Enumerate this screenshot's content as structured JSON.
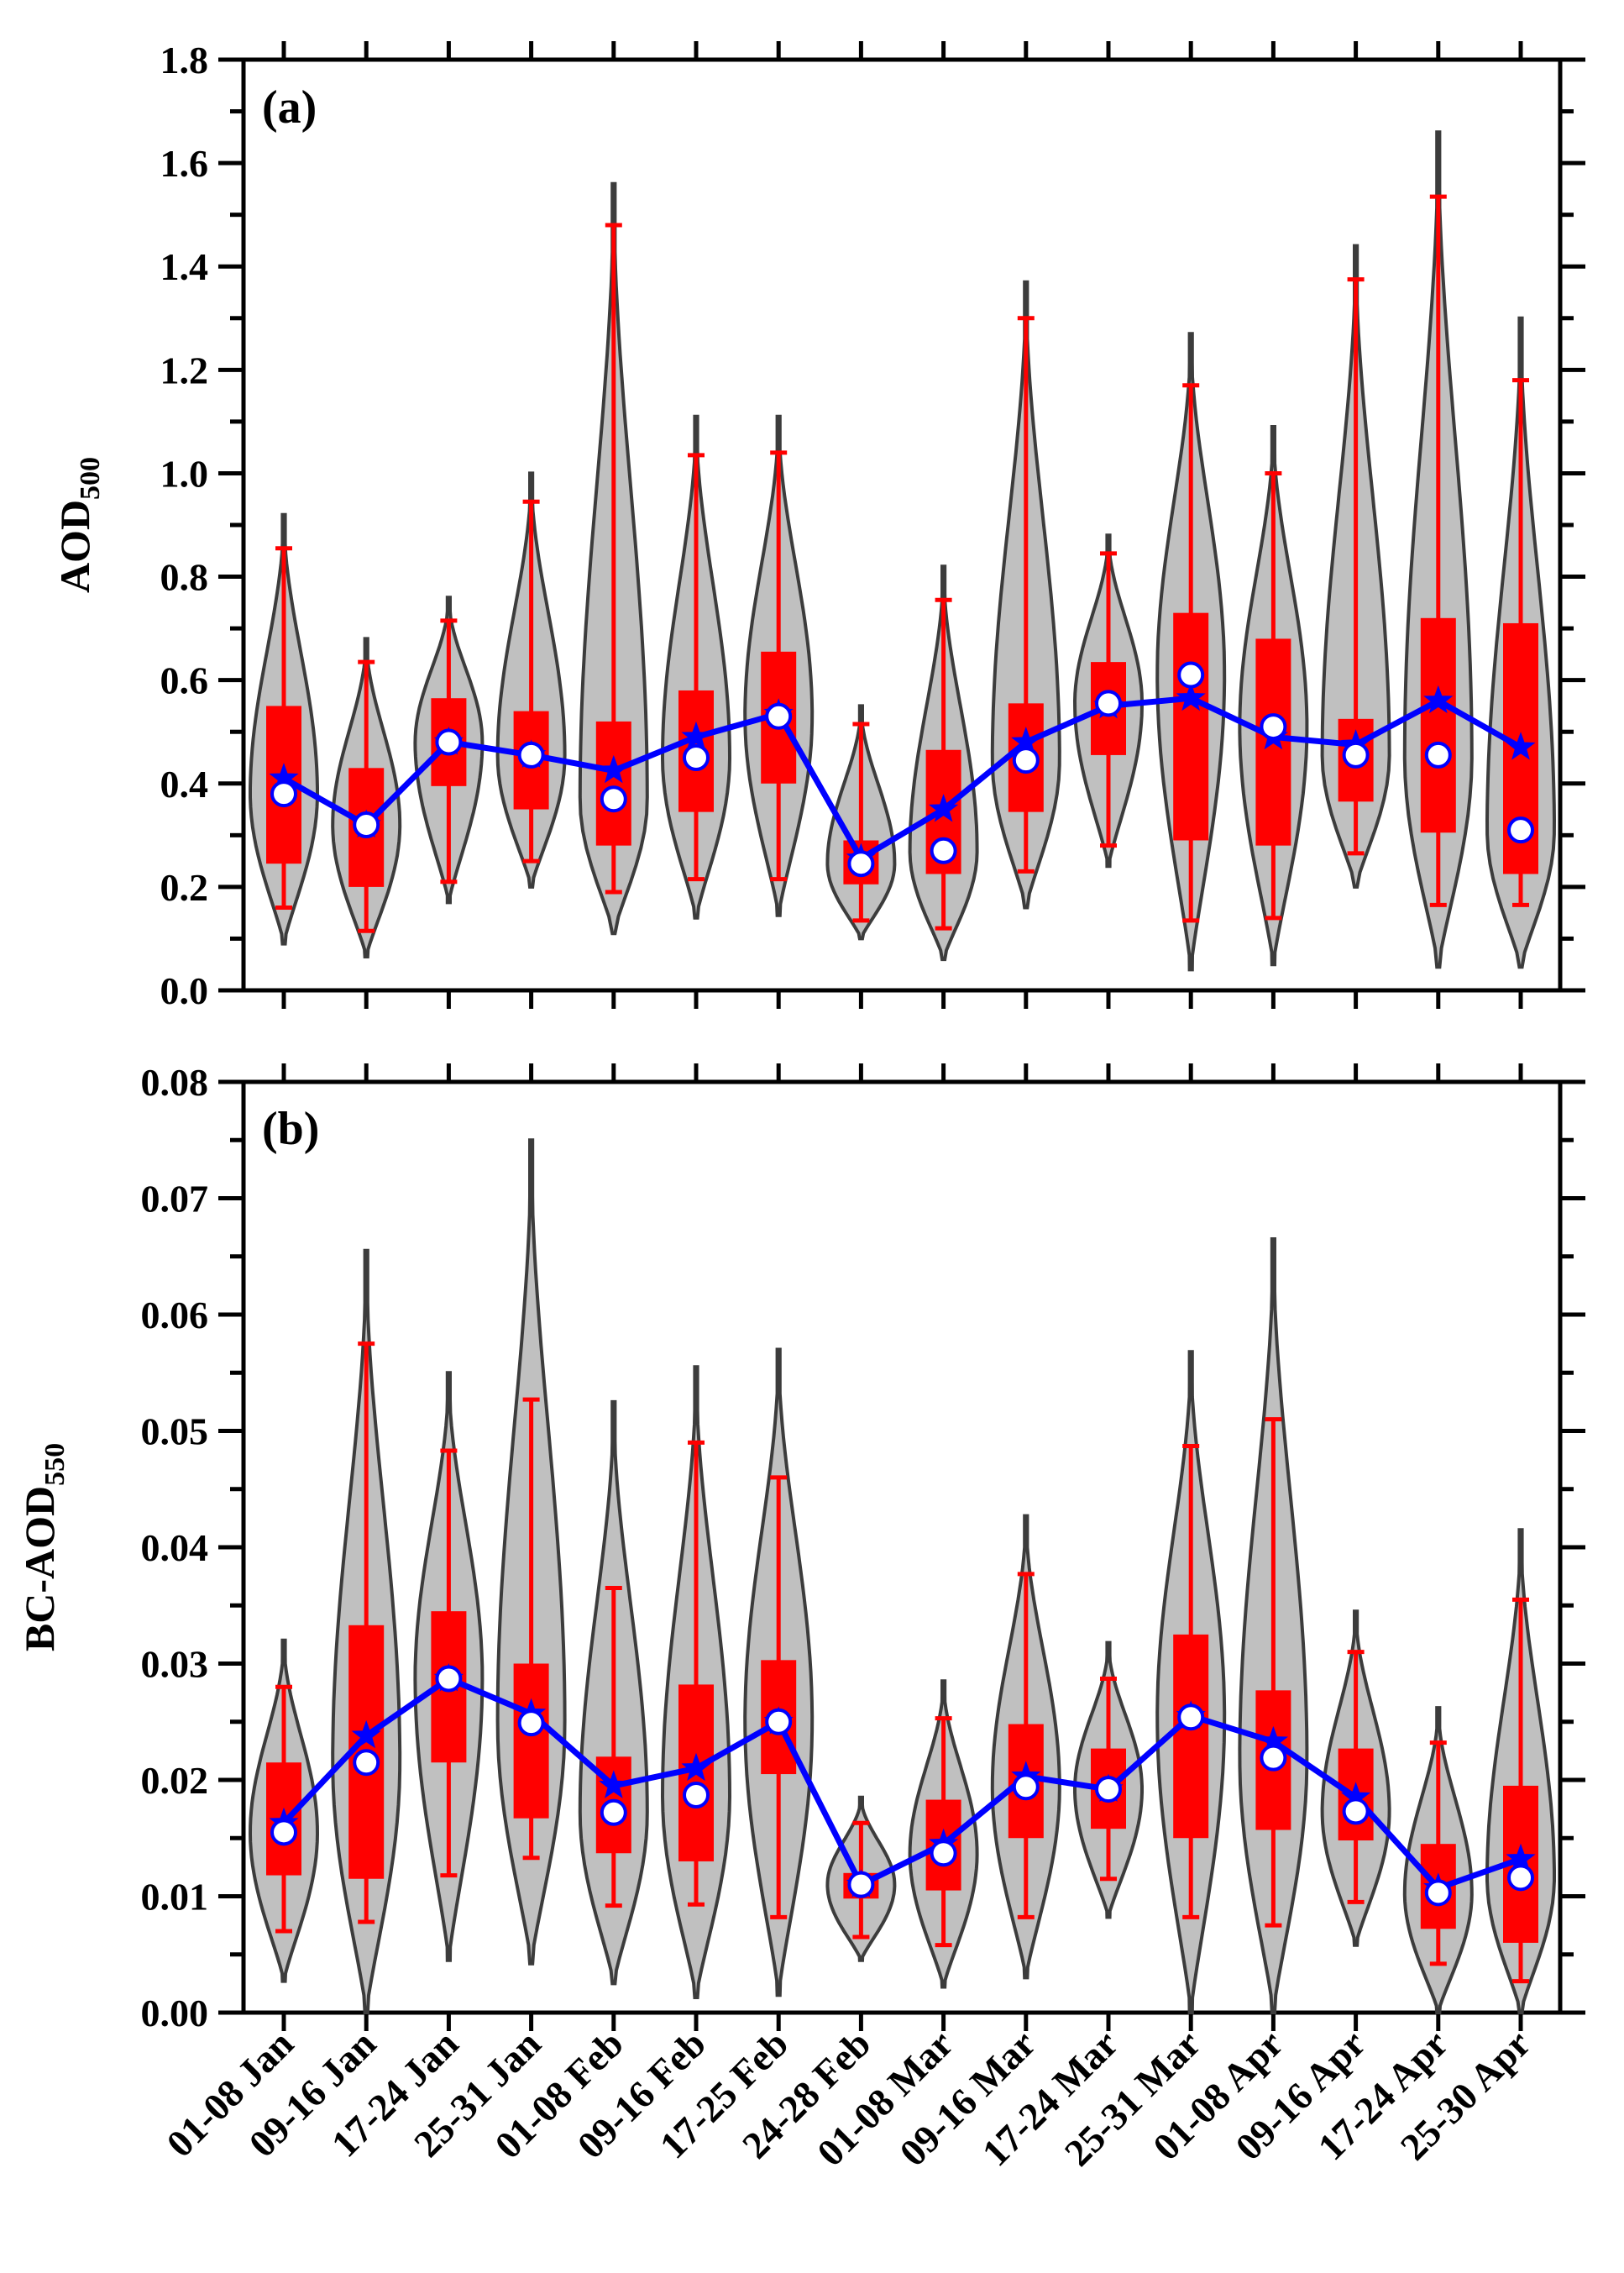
{
  "chart_data": {
    "type": "violin",
    "categories": [
      "01-08 Jan",
      "09-16 Jan",
      "17-24 Jan",
      "25-31 Jan",
      "01-08 Feb",
      "09-16 Feb",
      "17-25 Feb",
      "24-28 Feb",
      "01-08 Mar",
      "09-16 Mar",
      "17-24 Mar",
      "25-31 Mar",
      "01-08 Apr",
      "09-16 Apr",
      "17-24 Apr",
      "25-30 Apr"
    ],
    "colors": {
      "violin_fill": "#c0c0c0",
      "violin_stroke": "#3c3c3c",
      "box": "#ff0000",
      "mean_line": "#0000ff",
      "median_marker_fill": "#ffffff"
    },
    "panels": [
      {
        "panel_label": "(a)",
        "ylabel": "AOD",
        "ylabel_sub": "500",
        "ylim": [
          0.0,
          1.8
        ],
        "yticks": [
          "0.0",
          "0.2",
          "0.4",
          "0.6",
          "0.8",
          "1.0",
          "1.2",
          "1.4",
          "1.6",
          "1.8"
        ],
        "series": [
          {
            "name": "01-08 Jan",
            "min": 0.09,
            "max": 0.92,
            "whisker_low": 0.16,
            "whisker_high": 0.855,
            "q1": 0.245,
            "q3": 0.55,
            "median": 0.38,
            "mean": 0.41
          },
          {
            "name": "09-16 Jan",
            "min": 0.065,
            "max": 0.68,
            "whisker_low": 0.115,
            "whisker_high": 0.635,
            "q1": 0.2,
            "q3": 0.43,
            "median": 0.32,
            "mean": 0.32
          },
          {
            "name": "17-24 Jan",
            "min": 0.17,
            "max": 0.76,
            "whisker_low": 0.21,
            "whisker_high": 0.715,
            "q1": 0.395,
            "q3": 0.565,
            "median": 0.48,
            "mean": 0.48
          },
          {
            "name": "25-31 Jan",
            "min": 0.2,
            "max": 1.0,
            "whisker_low": 0.25,
            "whisker_high": 0.945,
            "q1": 0.35,
            "q3": 0.54,
            "median": 0.455,
            "mean": 0.455
          },
          {
            "name": "01-08 Feb",
            "min": 0.11,
            "max": 1.56,
            "whisker_low": 0.19,
            "whisker_high": 1.48,
            "q1": 0.28,
            "q3": 0.52,
            "median": 0.37,
            "mean": 0.425
          },
          {
            "name": "09-16 Feb",
            "min": 0.14,
            "max": 1.11,
            "whisker_low": 0.215,
            "whisker_high": 1.035,
            "q1": 0.345,
            "q3": 0.58,
            "median": 0.45,
            "mean": 0.49
          },
          {
            "name": "17-25 Feb",
            "min": 0.145,
            "max": 1.11,
            "whisker_low": 0.215,
            "whisker_high": 1.04,
            "q1": 0.4,
            "q3": 0.655,
            "median": 0.53,
            "mean": 0.535
          },
          {
            "name": "24-28 Feb",
            "min": 0.1,
            "max": 0.55,
            "whisker_low": 0.135,
            "whisker_high": 0.515,
            "q1": 0.205,
            "q3": 0.29,
            "median": 0.245,
            "mean": 0.255
          },
          {
            "name": "01-08 Mar",
            "min": 0.06,
            "max": 0.82,
            "whisker_low": 0.12,
            "whisker_high": 0.755,
            "q1": 0.225,
            "q3": 0.465,
            "median": 0.27,
            "mean": 0.35
          },
          {
            "name": "09-16 Mar",
            "min": 0.16,
            "max": 1.37,
            "whisker_low": 0.23,
            "whisker_high": 1.3,
            "q1": 0.345,
            "q3": 0.555,
            "median": 0.445,
            "mean": 0.48
          },
          {
            "name": "17-24 Mar",
            "min": 0.24,
            "max": 0.88,
            "whisker_low": 0.28,
            "whisker_high": 0.845,
            "q1": 0.455,
            "q3": 0.635,
            "median": 0.555,
            "mean": 0.55
          },
          {
            "name": "25-31 Mar",
            "min": 0.04,
            "max": 1.27,
            "whisker_low": 0.135,
            "whisker_high": 1.17,
            "q1": 0.29,
            "q3": 0.73,
            "median": 0.61,
            "mean": 0.565
          },
          {
            "name": "01-08 Apr",
            "min": 0.05,
            "max": 1.09,
            "whisker_low": 0.14,
            "whisker_high": 1.0,
            "q1": 0.28,
            "q3": 0.68,
            "median": 0.51,
            "mean": 0.49
          },
          {
            "name": "09-16 Apr",
            "min": 0.2,
            "max": 1.44,
            "whisker_low": 0.265,
            "whisker_high": 1.375,
            "q1": 0.365,
            "q3": 0.525,
            "median": 0.455,
            "mean": 0.475
          },
          {
            "name": "17-24 Apr",
            "min": 0.045,
            "max": 1.66,
            "whisker_low": 0.165,
            "whisker_high": 1.535,
            "q1": 0.305,
            "q3": 0.72,
            "median": 0.455,
            "mean": 0.56
          },
          {
            "name": "25-30 Apr",
            "min": 0.045,
            "max": 1.3,
            "whisker_low": 0.165,
            "whisker_high": 1.18,
            "q1": 0.225,
            "q3": 0.71,
            "median": 0.31,
            "mean": 0.47
          }
        ]
      },
      {
        "panel_label": "(b)",
        "ylabel": "BC-AOD",
        "ylabel_sub": "550",
        "ylim": [
          0.0,
          0.08
        ],
        "yticks": [
          "0.00",
          "0.01",
          "0.02",
          "0.03",
          "0.04",
          "0.05",
          "0.06",
          "0.07",
          "0.08"
        ],
        "series": [
          {
            "name": "01-08 Jan",
            "min": 0.0027,
            "max": 0.032,
            "whisker_low": 0.007,
            "whisker_high": 0.028,
            "q1": 0.0118,
            "q3": 0.0215,
            "median": 0.0155,
            "mean": 0.0163
          },
          {
            "name": "09-16 Jan",
            "min": 0.0,
            "max": 0.0655,
            "whisker_low": 0.0078,
            "whisker_high": 0.0575,
            "q1": 0.0115,
            "q3": 0.0333,
            "median": 0.0215,
            "mean": 0.0238
          },
          {
            "name": "17-24 Jan",
            "min": 0.0045,
            "max": 0.055,
            "whisker_low": 0.0118,
            "whisker_high": 0.0483,
            "q1": 0.0215,
            "q3": 0.0345,
            "median": 0.0287,
            "mean": 0.0287
          },
          {
            "name": "25-31 Jan",
            "min": 0.0042,
            "max": 0.075,
            "whisker_low": 0.0133,
            "whisker_high": 0.0527,
            "q1": 0.0167,
            "q3": 0.03,
            "median": 0.0249,
            "mean": 0.0257
          },
          {
            "name": "01-08 Feb",
            "min": 0.0025,
            "max": 0.0525,
            "whisker_low": 0.0092,
            "whisker_high": 0.0365,
            "q1": 0.0137,
            "q3": 0.022,
            "median": 0.0172,
            "mean": 0.0195
          },
          {
            "name": "09-16 Feb",
            "min": 0.0013,
            "max": 0.0555,
            "whisker_low": 0.0093,
            "whisker_high": 0.049,
            "q1": 0.013,
            "q3": 0.0282,
            "median": 0.0187,
            "mean": 0.021
          },
          {
            "name": "17-25 Feb",
            "min": 0.0015,
            "max": 0.057,
            "whisker_low": 0.0082,
            "whisker_high": 0.046,
            "q1": 0.0205,
            "q3": 0.0303,
            "median": 0.025,
            "mean": 0.025
          },
          {
            "name": "24-28 Feb",
            "min": 0.0045,
            "max": 0.0185,
            "whisker_low": 0.0065,
            "whisker_high": 0.0163,
            "q1": 0.0098,
            "q3": 0.012,
            "median": 0.011,
            "mean": 0.011
          },
          {
            "name": "01-08 Mar",
            "min": 0.0022,
            "max": 0.0285,
            "whisker_low": 0.0058,
            "whisker_high": 0.0253,
            "q1": 0.0105,
            "q3": 0.0183,
            "median": 0.0137,
            "mean": 0.0145
          },
          {
            "name": "09-16 Mar",
            "min": 0.003,
            "max": 0.0427,
            "whisker_low": 0.0082,
            "whisker_high": 0.0377,
            "q1": 0.015,
            "q3": 0.0248,
            "median": 0.0194,
            "mean": 0.0203
          },
          {
            "name": "17-24 Mar",
            "min": 0.0082,
            "max": 0.0318,
            "whisker_low": 0.0115,
            "whisker_high": 0.0287,
            "q1": 0.0158,
            "q3": 0.0227,
            "median": 0.0192,
            "mean": 0.0192
          },
          {
            "name": "25-31 Mar",
            "min": 0.0,
            "max": 0.0568,
            "whisker_low": 0.0082,
            "whisker_high": 0.0487,
            "q1": 0.015,
            "q3": 0.0325,
            "median": 0.0254,
            "mean": 0.0255
          },
          {
            "name": "01-08 Apr",
            "min": 0.0,
            "max": 0.0665,
            "whisker_low": 0.0075,
            "whisker_high": 0.051,
            "q1": 0.0157,
            "q3": 0.0277,
            "median": 0.0219,
            "mean": 0.0233
          },
          {
            "name": "09-16 Apr",
            "min": 0.0058,
            "max": 0.0345,
            "whisker_low": 0.0095,
            "whisker_high": 0.031,
            "q1": 0.0148,
            "q3": 0.0227,
            "median": 0.0173,
            "mean": 0.0185
          },
          {
            "name": "17-24 Apr",
            "min": 0.0,
            "max": 0.0262,
            "whisker_low": 0.0042,
            "whisker_high": 0.0232,
            "q1": 0.0072,
            "q3": 0.0145,
            "median": 0.0103,
            "mean": 0.0107
          },
          {
            "name": "25-30 Apr",
            "min": 0.0,
            "max": 0.0415,
            "whisker_low": 0.0027,
            "whisker_high": 0.0355,
            "q1": 0.006,
            "q3": 0.0195,
            "median": 0.0116,
            "mean": 0.0132
          }
        ]
      }
    ]
  }
}
